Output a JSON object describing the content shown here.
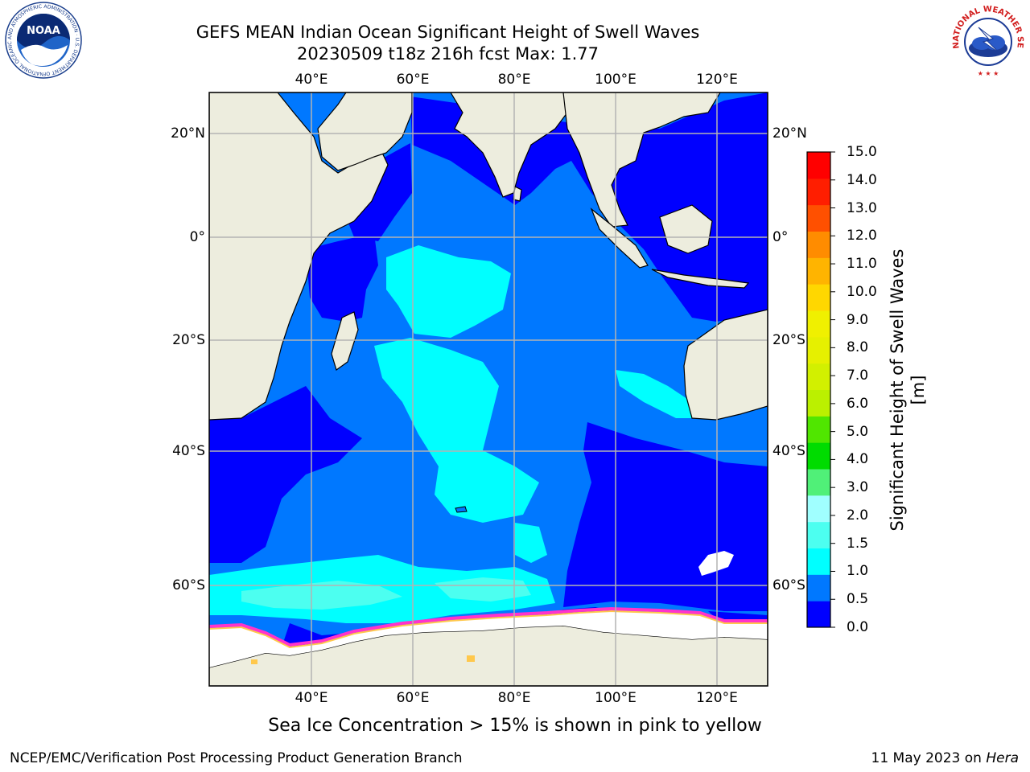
{
  "header": {
    "title_line1": "GEFS MEAN Indian Ocean Significant Height of Swell Waves",
    "title_line2": "20230509 t18z 216h fcst   Max: 1.77"
  },
  "logos": {
    "left": {
      "name": "noaa-logo",
      "text": "NOAA",
      "ring_text": "NATIONAL OCEANIC AND ATMOSPHERIC ADMINISTRATION · U.S. DEPARTMENT OF COMMERCE"
    },
    "right": {
      "name": "nws-logo",
      "ring_text": "NATIONAL WEATHER SERVICE"
    }
  },
  "map": {
    "longitude_labels": [
      "40°E",
      "60°E",
      "80°E",
      "100°E",
      "120°E"
    ],
    "latitude_labels": [
      "20°N",
      "0°",
      "20°S",
      "40°S",
      "60°S"
    ],
    "lon_range": [
      20,
      130
    ],
    "lat_range": [
      -76,
      28
    ],
    "gridlines": true,
    "colors": {
      "land": "#EDEDDE",
      "sea_ice": "#FFFFFF",
      "ice_edge": [
        "#FF33CC",
        "#FFC84C"
      ],
      "coastline": "#000000",
      "grid": "#B3B3B3"
    }
  },
  "colorbar": {
    "title": "Significant Height of Swell Waves [m]",
    "tick_labels": [
      "0.0",
      "0.5",
      "1.0",
      "1.5",
      "2.0",
      "3.0",
      "4.0",
      "5.0",
      "6.0",
      "7.0",
      "8.0",
      "9.0",
      "10.0",
      "11.0",
      "12.0",
      "13.0",
      "14.0",
      "15.0"
    ],
    "bins": [
      {
        "from": 0.0,
        "to": 0.5,
        "color": "#0000FF"
      },
      {
        "from": 0.5,
        "to": 1.0,
        "color": "#0078FF"
      },
      {
        "from": 1.0,
        "to": 1.5,
        "color": "#00FFFF"
      },
      {
        "from": 1.5,
        "to": 2.0,
        "color": "#4CFFF0"
      },
      {
        "from": 2.0,
        "to": 3.0,
        "color": "#A0FFFF"
      },
      {
        "from": 3.0,
        "to": 4.0,
        "color": "#50F078"
      },
      {
        "from": 4.0,
        "to": 5.0,
        "color": "#00DC00"
      },
      {
        "from": 5.0,
        "to": 6.0,
        "color": "#50E600"
      },
      {
        "from": 6.0,
        "to": 7.0,
        "color": "#BBF000"
      },
      {
        "from": 7.0,
        "to": 8.0,
        "color": "#D2F000"
      },
      {
        "from": 8.0,
        "to": 9.0,
        "color": "#E6F000"
      },
      {
        "from": 9.0,
        "to": 10.0,
        "color": "#F0F000"
      },
      {
        "from": 10.0,
        "to": 11.0,
        "color": "#FFD700"
      },
      {
        "from": 11.0,
        "to": 12.0,
        "color": "#FFB400"
      },
      {
        "from": 12.0,
        "to": 13.0,
        "color": "#FF8C00"
      },
      {
        "from": 13.0,
        "to": 14.0,
        "color": "#FF5000"
      },
      {
        "from": 14.0,
        "to": 15.0,
        "color": "#FF1E00"
      },
      {
        "from": 15.0,
        "to": 15.5,
        "color": "#FF0000"
      }
    ]
  },
  "caption": "Sea Ice Concentration > 15% is shown in pink to yellow",
  "footer": {
    "left": "NCEP/EMC/Verification Post Processing Product Generation Branch",
    "right_prefix": "11 May 2023 on ",
    "right_host": "Hera"
  }
}
